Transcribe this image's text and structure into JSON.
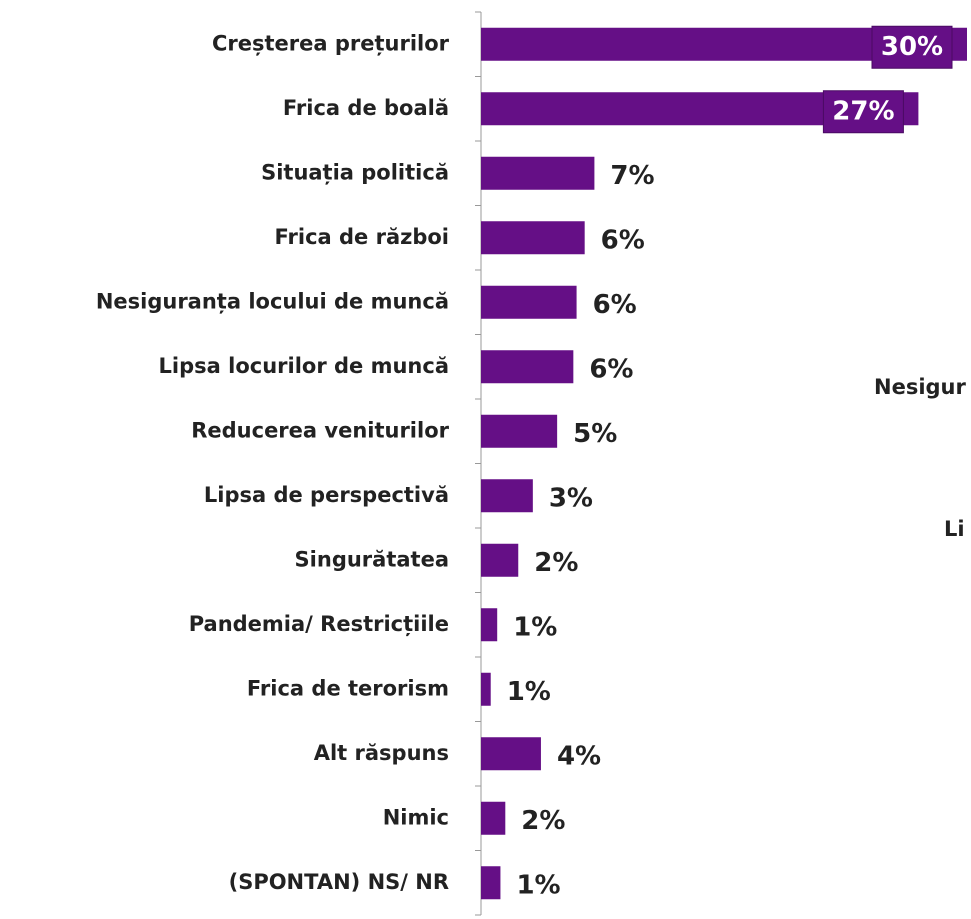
{
  "chart_data": {
    "type": "barh",
    "categories": [
      "Creșterea prețurilor",
      "Frica de boală",
      "Situația politică",
      "Frica de război",
      "Nesiguranța locului de muncă",
      "Lipsa locurilor de muncă",
      "Reducerea veniturilor",
      "Lipsa de perspectivă",
      "Singurătatea",
      "Pandemia/ Restricțiile",
      "Frica de terorism",
      "Alt răspuns",
      "Nimic",
      "(SPONTAN) NS/ NR"
    ],
    "values": [
      30,
      27,
      7,
      6.4,
      5.9,
      5.7,
      4.7,
      3.2,
      2.3,
      1.0,
      0.6,
      3.7,
      1.5,
      1.2
    ],
    "value_labels": [
      "30%",
      "27%",
      "7%",
      "6%",
      "6%",
      "6%",
      "5%",
      "3%",
      "2%",
      "1%",
      "1%",
      "4%",
      "2%",
      "1%"
    ],
    "color": "#650f86",
    "xlim": [
      0,
      30
    ],
    "annotations": [
      "Nesigur",
      "Li"
    ]
  }
}
